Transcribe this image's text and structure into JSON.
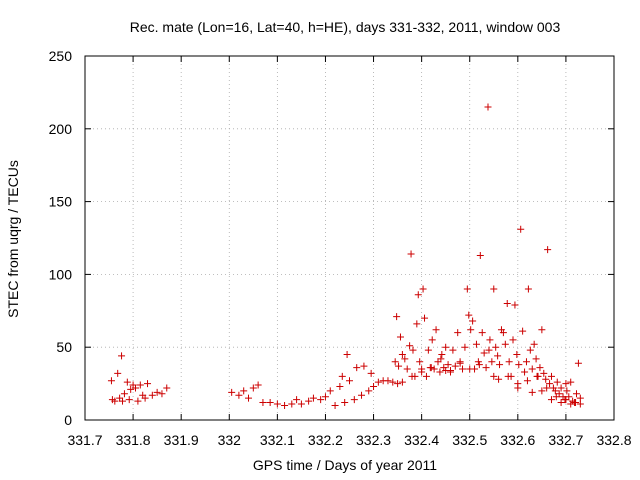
{
  "chart_data": {
    "type": "scatter",
    "title": "Rec. mate (Lon=16, Lat=40, h=HE), days 331-332, 2011, window 003",
    "xlabel": "GPS time / Days of year 2011",
    "ylabel": "STEC from uqrg / TECUs",
    "xlim": [
      331.7,
      332.8
    ],
    "ylim": [
      0,
      250
    ],
    "xticks": [
      "331.7",
      "331.8",
      "331.9",
      "332",
      "332.1",
      "332.2",
      "332.3",
      "332.4",
      "332.5",
      "332.6",
      "332.7",
      "332.8"
    ],
    "yticks": [
      "0",
      "50",
      "100",
      "150",
      "200",
      "250"
    ],
    "grid": true,
    "legend": "none",
    "marker": "plus",
    "color": "#cc0000",
    "points": [
      [
        331.755,
        27
      ],
      [
        331.757,
        14
      ],
      [
        331.762,
        13
      ],
      [
        331.768,
        32
      ],
      [
        331.772,
        15
      ],
      [
        331.776,
        44
      ],
      [
        331.778,
        13
      ],
      [
        331.782,
        18
      ],
      [
        331.788,
        26
      ],
      [
        331.792,
        14
      ],
      [
        331.795,
        21
      ],
      [
        331.8,
        24
      ],
      [
        331.805,
        22
      ],
      [
        331.81,
        13
      ],
      [
        331.815,
        24
      ],
      [
        331.82,
        17
      ],
      [
        331.825,
        15
      ],
      [
        331.83,
        25
      ],
      [
        331.84,
        17
      ],
      [
        331.85,
        19
      ],
      [
        331.86,
        18
      ],
      [
        331.87,
        22
      ],
      [
        332.005,
        19
      ],
      [
        332.02,
        17
      ],
      [
        332.03,
        20
      ],
      [
        332.04,
        15
      ],
      [
        332.05,
        22
      ],
      [
        332.06,
        24
      ],
      [
        332.07,
        12
      ],
      [
        332.085,
        12
      ],
      [
        332.1,
        11
      ],
      [
        332.115,
        10
      ],
      [
        332.13,
        11
      ],
      [
        332.14,
        14
      ],
      [
        332.15,
        11
      ],
      [
        332.165,
        13
      ],
      [
        332.175,
        15
      ],
      [
        332.19,
        14
      ],
      [
        332.2,
        16
      ],
      [
        332.21,
        20
      ],
      [
        332.22,
        10
      ],
      [
        332.23,
        23
      ],
      [
        332.235,
        30
      ],
      [
        332.24,
        12
      ],
      [
        332.245,
        45
      ],
      [
        332.25,
        27
      ],
      [
        332.26,
        14
      ],
      [
        332.265,
        36
      ],
      [
        332.275,
        17
      ],
      [
        332.28,
        37
      ],
      [
        332.29,
        20
      ],
      [
        332.295,
        32
      ],
      [
        332.3,
        23
      ],
      [
        332.31,
        26
      ],
      [
        332.32,
        27
      ],
      [
        332.33,
        27
      ],
      [
        332.34,
        26
      ],
      [
        332.345,
        40
      ],
      [
        332.348,
        71
      ],
      [
        332.352,
        37
      ],
      [
        332.356,
        57
      ],
      [
        332.36,
        26
      ],
      [
        332.365,
        42
      ],
      [
        332.37,
        35
      ],
      [
        332.375,
        51
      ],
      [
        332.378,
        114
      ],
      [
        332.382,
        48
      ],
      [
        332.386,
        30
      ],
      [
        332.39,
        66
      ],
      [
        332.393,
        86
      ],
      [
        332.396,
        40
      ],
      [
        332.4,
        35
      ],
      [
        332.403,
        90
      ],
      [
        332.406,
        70
      ],
      [
        332.41,
        30
      ],
      [
        332.414,
        48
      ],
      [
        332.418,
        36
      ],
      [
        332.422,
        55
      ],
      [
        332.426,
        35
      ],
      [
        332.43,
        62
      ],
      [
        332.434,
        40
      ],
      [
        332.438,
        33
      ],
      [
        332.442,
        45
      ],
      [
        332.446,
        36
      ],
      [
        332.45,
        50
      ],
      [
        332.455,
        38
      ],
      [
        332.46,
        34
      ],
      [
        332.465,
        48
      ],
      [
        332.47,
        37
      ],
      [
        332.475,
        60
      ],
      [
        332.48,
        39
      ],
      [
        332.485,
        35
      ],
      [
        332.49,
        50
      ],
      [
        332.495,
        90
      ],
      [
        332.498,
        72
      ],
      [
        332.502,
        62
      ],
      [
        332.506,
        68
      ],
      [
        332.51,
        35
      ],
      [
        332.514,
        52
      ],
      [
        332.518,
        40
      ],
      [
        332.522,
        113
      ],
      [
        332.526,
        60
      ],
      [
        332.53,
        46
      ],
      [
        332.534,
        36
      ],
      [
        332.538,
        215
      ],
      [
        332.542,
        55
      ],
      [
        332.546,
        40
      ],
      [
        332.55,
        90
      ],
      [
        332.554,
        50
      ],
      [
        332.558,
        44
      ],
      [
        332.562,
        38
      ],
      [
        332.566,
        62
      ],
      [
        332.57,
        60
      ],
      [
        332.574,
        52
      ],
      [
        332.578,
        80
      ],
      [
        332.582,
        40
      ],
      [
        332.586,
        30
      ],
      [
        332.59,
        55
      ],
      [
        332.594,
        79
      ],
      [
        332.598,
        45
      ],
      [
        332.602,
        38
      ],
      [
        332.606,
        131
      ],
      [
        332.61,
        61
      ],
      [
        332.614,
        33
      ],
      [
        332.618,
        40
      ],
      [
        332.622,
        90
      ],
      [
        332.626,
        48
      ],
      [
        332.63,
        35
      ],
      [
        332.634,
        52
      ],
      [
        332.638,
        42
      ],
      [
        332.642,
        30
      ],
      [
        332.646,
        36
      ],
      [
        332.65,
        62
      ],
      [
        332.654,
        32
      ],
      [
        332.658,
        28
      ],
      [
        332.662,
        117
      ],
      [
        332.666,
        25
      ],
      [
        332.67,
        30
      ],
      [
        332.674,
        22
      ],
      [
        332.678,
        20
      ],
      [
        332.682,
        26
      ],
      [
        332.686,
        18
      ],
      [
        332.69,
        22
      ],
      [
        332.694,
        16
      ],
      [
        332.698,
        14
      ],
      [
        332.702,
        20
      ],
      [
        332.706,
        16
      ],
      [
        332.71,
        26
      ],
      [
        332.714,
        13
      ],
      [
        332.718,
        12
      ],
      [
        332.722,
        18
      ],
      [
        332.726,
        39
      ],
      [
        332.73,
        15
      ],
      [
        332.35,
        25
      ],
      [
        332.4,
        33
      ],
      [
        332.45,
        34
      ],
      [
        332.5,
        35
      ],
      [
        332.55,
        30
      ],
      [
        332.6,
        25
      ],
      [
        332.65,
        20
      ],
      [
        332.7,
        14
      ],
      [
        332.72,
        12
      ],
      [
        332.38,
        30
      ],
      [
        332.42,
        36
      ],
      [
        332.48,
        40
      ],
      [
        332.52,
        38
      ],
      [
        332.58,
        30
      ],
      [
        332.62,
        27
      ],
      [
        332.66,
        22
      ],
      [
        332.68,
        16
      ],
      [
        332.36,
        45
      ],
      [
        332.44,
        42
      ],
      [
        332.54,
        48
      ],
      [
        332.64,
        30
      ],
      [
        332.7,
        25
      ],
      [
        332.73,
        11
      ],
      [
        332.46,
        33
      ],
      [
        332.56,
        28
      ],
      [
        332.6,
        22
      ],
      [
        332.63,
        19
      ],
      [
        332.67,
        14
      ],
      [
        332.69,
        12
      ],
      [
        332.71,
        11
      ]
    ]
  }
}
